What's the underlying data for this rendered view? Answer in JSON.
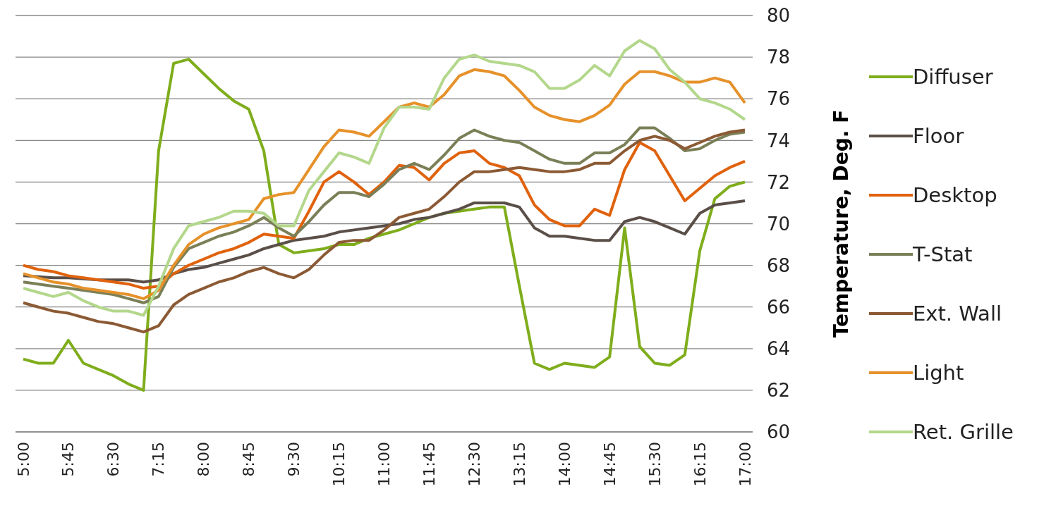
{
  "chart_data": {
    "type": "line",
    "ylabel": "Temperature, Deg. F",
    "categories": [
      "5:00",
      null,
      null,
      "5:45",
      null,
      null,
      "6:30",
      null,
      null,
      "7:15",
      null,
      null,
      "8:00",
      null,
      null,
      "8:45",
      null,
      null,
      "9:30",
      null,
      null,
      "10:15",
      null,
      null,
      "11:00",
      null,
      null,
      "11:45",
      null,
      null,
      "12:30",
      null,
      null,
      "13:15",
      null,
      null,
      "14:00",
      null,
      null,
      "14:45",
      null,
      null,
      "15:30",
      null,
      null,
      "16:15",
      null,
      null,
      "17:00"
    ],
    "ylim": [
      60,
      80
    ],
    "yticks": [
      60,
      62,
      64,
      66,
      68,
      70,
      72,
      74,
      76,
      78,
      80
    ],
    "grid": "y",
    "legend": "right",
    "marker": "none",
    "line_style": "solid",
    "series": [
      {
        "name": "Diffuser",
        "color": "#7fad1c",
        "values": [
          63.5,
          63.3,
          63.3,
          64.4,
          63.3,
          63.0,
          62.7,
          62.3,
          62.0,
          73.5,
          77.7,
          77.9,
          77.2,
          76.5,
          75.9,
          75.5,
          73.5,
          69.0,
          68.6,
          68.7,
          68.8,
          69.0,
          69.0,
          69.3,
          69.5,
          69.7,
          70.0,
          70.3,
          70.5,
          70.6,
          70.7,
          70.8,
          70.8,
          67.0,
          63.3,
          63.0,
          63.3,
          63.2,
          63.1,
          63.6,
          69.8,
          64.1,
          63.3,
          63.2,
          63.7,
          68.7,
          71.2,
          71.8,
          72.0
        ]
      },
      {
        "name": "Floor",
        "color": "#5a4f48",
        "values": [
          67.5,
          67.45,
          67.4,
          67.4,
          67.35,
          67.3,
          67.3,
          67.3,
          67.2,
          67.3,
          67.6,
          67.8,
          67.9,
          68.1,
          68.3,
          68.5,
          68.8,
          69.0,
          69.2,
          69.3,
          69.4,
          69.6,
          69.7,
          69.8,
          69.9,
          70.0,
          70.2,
          70.3,
          70.5,
          70.7,
          71.0,
          71.0,
          71.0,
          70.8,
          69.8,
          69.4,
          69.4,
          69.3,
          69.2,
          69.2,
          70.1,
          70.3,
          70.1,
          69.8,
          69.5,
          70.5,
          70.9,
          71.0,
          71.1
        ]
      },
      {
        "name": "Desktop",
        "color": "#e0620d",
        "values": [
          68.0,
          67.8,
          67.7,
          67.5,
          67.4,
          67.3,
          67.2,
          67.1,
          66.9,
          67.0,
          67.6,
          68.0,
          68.3,
          68.6,
          68.8,
          69.1,
          69.5,
          69.4,
          69.3,
          70.6,
          72.0,
          72.5,
          72.0,
          71.4,
          72.0,
          72.8,
          72.7,
          72.1,
          72.9,
          73.4,
          73.5,
          72.9,
          72.7,
          72.3,
          70.9,
          70.2,
          69.9,
          69.9,
          70.7,
          70.4,
          72.6,
          73.9,
          73.5,
          72.3,
          71.1,
          71.7,
          72.3,
          72.7,
          73.0
        ]
      },
      {
        "name": "T-Stat",
        "color": "#7b7f57",
        "values": [
          67.2,
          67.1,
          67.0,
          66.9,
          66.8,
          66.7,
          66.6,
          66.4,
          66.2,
          66.5,
          67.9,
          68.8,
          69.1,
          69.4,
          69.6,
          69.9,
          70.3,
          69.8,
          69.4,
          70.1,
          70.9,
          71.5,
          71.5,
          71.3,
          71.9,
          72.6,
          72.9,
          72.6,
          73.3,
          74.1,
          74.5,
          74.2,
          74.0,
          73.9,
          73.5,
          73.1,
          72.9,
          72.9,
          73.4,
          73.4,
          73.8,
          74.6,
          74.6,
          74.1,
          73.5,
          73.6,
          74.0,
          74.3,
          74.4
        ]
      },
      {
        "name": "Ext. Wall",
        "color": "#8b5a34",
        "values": [
          66.2,
          66.0,
          65.8,
          65.7,
          65.5,
          65.3,
          65.2,
          65.0,
          64.8,
          65.1,
          66.1,
          66.6,
          66.9,
          67.2,
          67.4,
          67.7,
          67.9,
          67.6,
          67.4,
          67.8,
          68.5,
          69.1,
          69.2,
          69.2,
          69.7,
          70.3,
          70.5,
          70.7,
          71.3,
          72.0,
          72.5,
          72.5,
          72.6,
          72.7,
          72.6,
          72.5,
          72.5,
          72.6,
          72.9,
          72.9,
          73.5,
          74.0,
          74.2,
          74.0,
          73.6,
          73.9,
          74.2,
          74.4,
          74.5
        ]
      },
      {
        "name": "Light",
        "color": "#e6912a",
        "values": [
          67.6,
          67.4,
          67.2,
          67.1,
          66.9,
          66.8,
          66.7,
          66.6,
          66.4,
          66.8,
          68.0,
          69.0,
          69.5,
          69.8,
          70.0,
          70.2,
          71.2,
          71.4,
          71.5,
          72.6,
          73.7,
          74.5,
          74.4,
          74.2,
          74.9,
          75.6,
          75.8,
          75.6,
          76.2,
          77.1,
          77.4,
          77.3,
          77.1,
          76.4,
          75.6,
          75.2,
          75.0,
          74.9,
          75.2,
          75.7,
          76.7,
          77.3,
          77.3,
          77.1,
          76.8,
          76.8,
          77.0,
          76.8,
          75.8
        ]
      },
      {
        "name": "Ret. Grille",
        "color": "#b3d78b",
        "values": [
          66.9,
          66.7,
          66.5,
          66.7,
          66.3,
          66.0,
          65.8,
          65.8,
          65.6,
          67.0,
          68.8,
          69.9,
          70.1,
          70.3,
          70.6,
          70.6,
          70.5,
          69.9,
          69.9,
          71.6,
          72.5,
          73.4,
          73.2,
          72.9,
          74.6,
          75.6,
          75.6,
          75.5,
          77.0,
          77.9,
          78.1,
          77.8,
          77.7,
          77.6,
          77.3,
          76.5,
          76.5,
          76.9,
          77.6,
          77.1,
          78.3,
          78.8,
          78.4,
          77.4,
          76.8,
          76.0,
          75.8,
          75.5,
          75.0
        ]
      }
    ]
  }
}
